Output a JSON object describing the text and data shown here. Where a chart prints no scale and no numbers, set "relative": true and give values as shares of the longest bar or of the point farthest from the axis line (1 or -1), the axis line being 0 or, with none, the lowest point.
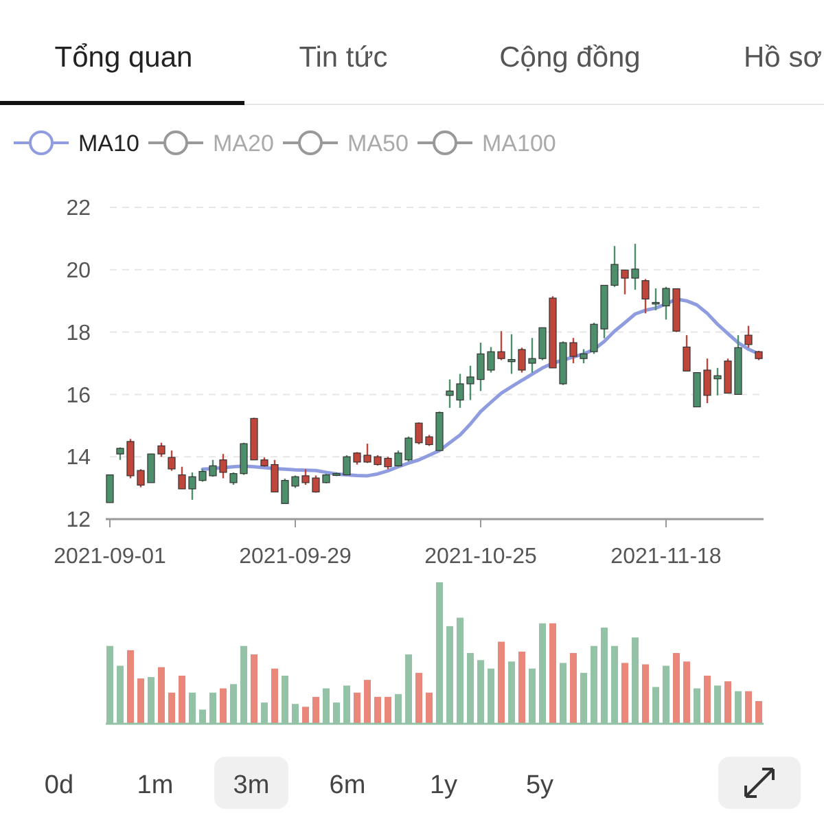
{
  "chart_data": [
    {
      "type": "candlestick",
      "annotations": [
        "Tổng quan",
        "Tin tức",
        "Cộng đồng",
        "Hồ sơ",
        "0d",
        "1m",
        "3m",
        "6m",
        "1y",
        "5y"
      ],
      "categories": [
        "2021-09-01",
        null,
        null,
        null,
        null,
        null,
        null,
        null,
        null,
        null,
        null,
        null,
        null,
        null,
        null,
        null,
        null,
        null,
        "2021-09-29",
        null,
        null,
        null,
        null,
        null,
        null,
        null,
        null,
        null,
        null,
        null,
        null,
        null,
        null,
        null,
        null,
        null,
        "2021-10-25",
        null,
        null,
        null,
        null,
        null,
        null,
        null,
        null,
        null,
        null,
        null,
        null,
        null,
        null,
        null,
        null,
        null,
        "2021-11-18",
        null,
        null,
        null,
        null,
        null,
        null,
        null,
        null,
        null
      ],
      "ohlc": [
        [
          12.53,
          13.42,
          12.53,
          13.42
        ],
        [
          14.09,
          14.3,
          13.9,
          14.27
        ],
        [
          14.49,
          14.57,
          13.31,
          13.39
        ],
        [
          13.56,
          13.6,
          13.02,
          13.09
        ],
        [
          13.17,
          14.1,
          13.17,
          14.09
        ],
        [
          14.35,
          14.45,
          14.0,
          14.09
        ],
        [
          13.98,
          14.2,
          13.55,
          13.61
        ],
        [
          13.42,
          13.68,
          12.97,
          12.97
        ],
        [
          12.97,
          13.5,
          12.62,
          13.36
        ],
        [
          13.24,
          13.6,
          13.2,
          13.53
        ],
        [
          13.39,
          13.9,
          13.36,
          13.71
        ],
        [
          13.9,
          14.09,
          13.31,
          13.5
        ],
        [
          13.17,
          13.5,
          13.1,
          13.46
        ],
        [
          13.46,
          14.45,
          13.42,
          14.42
        ],
        [
          15.23,
          15.25,
          13.9,
          13.9
        ],
        [
          13.9,
          13.98,
          13.68,
          13.71
        ],
        [
          13.75,
          13.9,
          12.87,
          12.87
        ],
        [
          12.5,
          13.3,
          12.5,
          13.24
        ],
        [
          13.06,
          13.4,
          13.0,
          13.36
        ],
        [
          13.39,
          13.6,
          13.1,
          13.17
        ],
        [
          13.32,
          13.4,
          12.85,
          12.87
        ],
        [
          13.17,
          13.45,
          13.15,
          13.42
        ],
        [
          13.4,
          13.5,
          13.38,
          13.46
        ],
        [
          13.42,
          14.05,
          13.42,
          14.0
        ],
        [
          14.12,
          14.15,
          13.75,
          13.83
        ],
        [
          14.05,
          14.42,
          13.8,
          13.83
        ],
        [
          14.0,
          14.05,
          13.72,
          13.75
        ],
        [
          13.95,
          14.0,
          13.6,
          13.68
        ],
        [
          13.71,
          14.2,
          13.68,
          14.12
        ],
        [
          13.9,
          14.65,
          13.85,
          14.6
        ],
        [
          15.08,
          15.1,
          14.4,
          14.45
        ],
        [
          14.64,
          14.7,
          14.35,
          14.39
        ],
        [
          14.2,
          15.45,
          14.2,
          15.42
        ],
        [
          15.97,
          16.48,
          15.57,
          16.11
        ],
        [
          15.82,
          16.66,
          15.57,
          16.34
        ],
        [
          16.34,
          16.92,
          15.82,
          16.56
        ],
        [
          16.48,
          17.66,
          16.11,
          17.3
        ],
        [
          16.78,
          17.52,
          16.7,
          17.37
        ],
        [
          17.37,
          18.03,
          17.1,
          17.15
        ],
        [
          17.05,
          17.93,
          16.66,
          17.12
        ],
        [
          17.44,
          17.5,
          16.7,
          16.78
        ],
        [
          17.0,
          17.81,
          16.7,
          17.15
        ],
        [
          17.15,
          18.14,
          17.1,
          18.14
        ],
        [
          19.09,
          19.15,
          16.85,
          16.85
        ],
        [
          16.34,
          17.7,
          16.3,
          17.66
        ],
        [
          17.66,
          17.81,
          17.0,
          17.22
        ],
        [
          17.15,
          17.45,
          17.0,
          17.3
        ],
        [
          17.37,
          18.3,
          17.3,
          18.25
        ],
        [
          18.1,
          19.5,
          17.8,
          19.5
        ],
        [
          19.5,
          20.76,
          19.45,
          20.17
        ],
        [
          19.99,
          20.0,
          19.21,
          19.73
        ],
        [
          19.73,
          20.83,
          19.36,
          20.02
        ],
        [
          19.65,
          19.7,
          18.6,
          19.06
        ],
        [
          18.9,
          19.4,
          18.7,
          18.95
        ],
        [
          18.84,
          19.45,
          18.4,
          19.4
        ],
        [
          19.39,
          19.4,
          18.0,
          18.03
        ],
        [
          17.52,
          17.9,
          16.75,
          16.75
        ],
        [
          15.6,
          16.7,
          15.6,
          16.7
        ],
        [
          16.78,
          17.15,
          15.72,
          15.97
        ],
        [
          16.5,
          16.85,
          15.97,
          16.6
        ],
        [
          17.07,
          17.15,
          16.04,
          16.04
        ],
        [
          16.0,
          17.9,
          16.0,
          17.5
        ],
        [
          17.9,
          18.2,
          17.5,
          17.6
        ],
        [
          17.37,
          17.4,
          17.1,
          17.15
        ]
      ],
      "colors": [
        "#4e8f6b",
        "#4e8f6b",
        "#c0453b",
        "#c0453b",
        "#4e8f6b",
        "#c0453b",
        "#c0453b",
        "#c0453b",
        "#4e8f6b",
        "#4e8f6b",
        "#4e8f6b",
        "#c0453b",
        "#4e8f6b",
        "#4e8f6b",
        "#c0453b",
        "#c0453b",
        "#c0453b",
        "#4e8f6b",
        "#4e8f6b",
        "#c0453b",
        "#c0453b",
        "#4e8f6b",
        "#4e8f6b",
        "#4e8f6b",
        "#c0453b",
        "#c0453b",
        "#c0453b",
        "#c0453b",
        "#4e8f6b",
        "#4e8f6b",
        "#c0453b",
        "#c0453b",
        "#4e8f6b",
        "#4e8f6b",
        "#4e8f6b",
        "#4e8f6b",
        "#4e8f6b",
        "#4e8f6b",
        "#c0453b",
        "#4e8f6b",
        "#c0453b",
        "#4e8f6b",
        "#4e8f6b",
        "#c0453b",
        "#4e8f6b",
        "#c0453b",
        "#4e8f6b",
        "#4e8f6b",
        "#4e8f6b",
        "#4e8f6b",
        "#c0453b",
        "#4e8f6b",
        "#c0453b",
        "#4e8f6b",
        "#4e8f6b",
        "#c0453b",
        "#c0453b",
        "#4e8f6b",
        "#c0453b",
        "#4e8f6b",
        "#c0453b",
        "#4e8f6b",
        "#c0453b",
        "#c0453b"
      ],
      "series": [
        {
          "name": "MA10",
          "type": "line",
          "color": "#8f9de0",
          "values": [
            null,
            null,
            null,
            null,
            null,
            null,
            null,
            null,
            null,
            13.6,
            13.62,
            13.65,
            13.68,
            13.7,
            13.68,
            13.65,
            13.62,
            13.6,
            13.58,
            13.57,
            13.56,
            13.5,
            13.45,
            13.42,
            13.4,
            13.39,
            13.45,
            13.55,
            13.68,
            13.8,
            13.9,
            14.05,
            14.2,
            14.45,
            14.7,
            15.05,
            15.45,
            15.75,
            16.04,
            16.25,
            16.45,
            16.65,
            16.85,
            17.0,
            17.1,
            17.2,
            17.3,
            17.44,
            17.7,
            18.03,
            18.3,
            18.58,
            18.7,
            18.77,
            18.9,
            19.06,
            19.0,
            18.87,
            18.6,
            18.25,
            17.95,
            17.66,
            17.45,
            17.3
          ]
        },
        {
          "name": "MA20",
          "type": "line",
          "color": "#999999",
          "values": [
            null,
            null,
            null,
            null,
            null,
            null,
            null,
            null,
            null,
            null,
            null,
            null,
            null,
            null,
            null,
            null,
            null,
            null,
            null,
            null,
            null,
            null,
            null,
            null,
            null,
            null,
            null,
            null,
            null,
            null,
            null,
            null,
            null,
            null,
            null,
            null,
            null,
            null,
            null,
            null,
            null,
            null,
            null,
            null,
            null,
            null,
            null,
            null,
            null,
            null,
            null,
            null,
            null,
            null,
            null,
            null,
            null,
            null,
            null,
            null,
            null,
            null,
            null,
            null
          ]
        },
        {
          "name": "MA50",
          "type": "line",
          "color": "#999999",
          "values": [
            null,
            null,
            null,
            null,
            null,
            null,
            null,
            null,
            null,
            null,
            null,
            null,
            null,
            null,
            null,
            null,
            null,
            null,
            null,
            null,
            null,
            null,
            null,
            null,
            null,
            null,
            null,
            null,
            null,
            null,
            null,
            null,
            null,
            null,
            null,
            null,
            null,
            null,
            null,
            null,
            null,
            null,
            null,
            null,
            null,
            null,
            null,
            null,
            null,
            null,
            null,
            null,
            null,
            null,
            null,
            null,
            null,
            null,
            null,
            null,
            null,
            null,
            null,
            null
          ]
        },
        {
          "name": "MA100",
          "type": "line",
          "color": "#999999",
          "values": [
            null,
            null,
            null,
            null,
            null,
            null,
            null,
            null,
            null,
            null,
            null,
            null,
            null,
            null,
            null,
            null,
            null,
            null,
            null,
            null,
            null,
            null,
            null,
            null,
            null,
            null,
            null,
            null,
            null,
            null,
            null,
            null,
            null,
            null,
            null,
            null,
            null,
            null,
            null,
            null,
            null,
            null,
            null,
            null,
            null,
            null,
            null,
            null,
            null,
            null,
            null,
            null,
            null,
            null,
            null,
            null,
            null,
            null,
            null,
            null,
            null,
            null,
            null,
            null
          ]
        }
      ],
      "ylim": [
        12,
        22
      ],
      "yticks": [
        12,
        14,
        16,
        18,
        20,
        22
      ],
      "grid": "y",
      "legend": "top left"
    },
    {
      "type": "bar",
      "relative": true,
      "categories": [
        null,
        null,
        null,
        null,
        null,
        null,
        null,
        null,
        null,
        null,
        null,
        null,
        null,
        null,
        null,
        null,
        null,
        null,
        null,
        null,
        null,
        null,
        null,
        null,
        null,
        null,
        null,
        null,
        null,
        null,
        null,
        null,
        null,
        null,
        null,
        null,
        null,
        null,
        null,
        null,
        null,
        null,
        null,
        null,
        null,
        null,
        null,
        null,
        null,
        null,
        null,
        null,
        null,
        null,
        null,
        null,
        null,
        null,
        null,
        null,
        null,
        null,
        null,
        null
      ],
      "values": [
        0.55,
        0.41,
        0.52,
        0.32,
        0.33,
        0.4,
        0.22,
        0.34,
        0.22,
        0.1,
        0.22,
        0.25,
        0.28,
        0.55,
        0.49,
        0.15,
        0.39,
        0.34,
        0.14,
        0.12,
        0.19,
        0.25,
        0.15,
        0.27,
        0.22,
        0.31,
        0.19,
        0.19,
        0.21,
        0.49,
        0.36,
        0.22,
        1,
        0.69,
        0.75,
        0.5,
        0.45,
        0.39,
        0.58,
        0.44,
        0.51,
        0.39,
        0.71,
        0.71,
        0.43,
        0.5,
        0.36,
        0.55,
        0.68,
        0.55,
        0.43,
        0.61,
        0.42,
        0.26,
        0.41,
        0.5,
        0.44,
        0.25,
        0.34,
        0.27,
        0.3,
        0.23,
        0.23,
        0.16
      ],
      "colors": [
        "#93c2a6",
        "#93c2a6",
        "#e8877a",
        "#e8877a",
        "#93c2a6",
        "#e8877a",
        "#e8877a",
        "#e8877a",
        "#93c2a6",
        "#93c2a6",
        "#93c2a6",
        "#e8877a",
        "#93c2a6",
        "#93c2a6",
        "#e8877a",
        "#93c2a6",
        "#e8877a",
        "#93c2a6",
        "#93c2a6",
        "#e8877a",
        "#e8877a",
        "#93c2a6",
        "#93c2a6",
        "#93c2a6",
        "#e8877a",
        "#e8877a",
        "#e8877a",
        "#e8877a",
        "#93c2a6",
        "#93c2a6",
        "#e8877a",
        "#e8877a",
        "#93c2a6",
        "#93c2a6",
        "#93c2a6",
        "#93c2a6",
        "#93c2a6",
        "#93c2a6",
        "#e8877a",
        "#93c2a6",
        "#e8877a",
        "#93c2a6",
        "#93c2a6",
        "#e8877a",
        "#93c2a6",
        "#e8877a",
        "#93c2a6",
        "#93c2a6",
        "#93c2a6",
        "#93c2a6",
        "#e8877a",
        "#93c2a6",
        "#e8877a",
        "#93c2a6",
        "#93c2a6",
        "#e8877a",
        "#e8877a",
        "#93c2a6",
        "#e8877a",
        "#93c2a6",
        "#e8877a",
        "#93c2a6",
        "#e8877a",
        "#e8877a"
      ]
    }
  ]
}
